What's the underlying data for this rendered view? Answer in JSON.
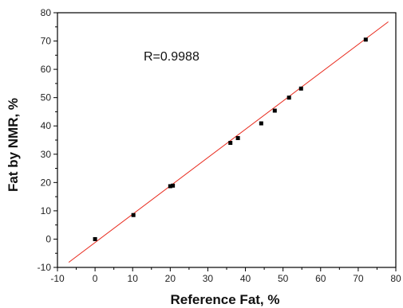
{
  "chart_data": {
    "type": "scatter",
    "title": "",
    "xlabel": "Reference Fat, %",
    "ylabel": "Fat by NMR, %",
    "xlim": [
      -10,
      80
    ],
    "ylim": [
      -10,
      80
    ],
    "x_ticks": [
      -10,
      0,
      10,
      20,
      30,
      40,
      50,
      60,
      70,
      80
    ],
    "y_ticks": [
      -10,
      0,
      10,
      20,
      30,
      40,
      50,
      60,
      70,
      80
    ],
    "grid": false,
    "legend": "none",
    "annotation": "R=0.9988",
    "points": [
      {
        "x": 0.0,
        "y": 0.0
      },
      {
        "x": 10.2,
        "y": 8.5
      },
      {
        "x": 20.0,
        "y": 18.7
      },
      {
        "x": 20.7,
        "y": 18.9
      },
      {
        "x": 36.0,
        "y": 34.0
      },
      {
        "x": 38.0,
        "y": 35.7
      },
      {
        "x": 44.2,
        "y": 40.9
      },
      {
        "x": 47.8,
        "y": 45.4
      },
      {
        "x": 51.6,
        "y": 50.0
      },
      {
        "x": 54.8,
        "y": 53.2
      },
      {
        "x": 72.0,
        "y": 70.5
      }
    ],
    "fit_line": {
      "x": [
        -7,
        78
      ],
      "y": [
        -8.2,
        76.8
      ]
    },
    "colors": {
      "points": "#000000",
      "fit_line": "#e8291c",
      "axis": "#000000"
    }
  }
}
